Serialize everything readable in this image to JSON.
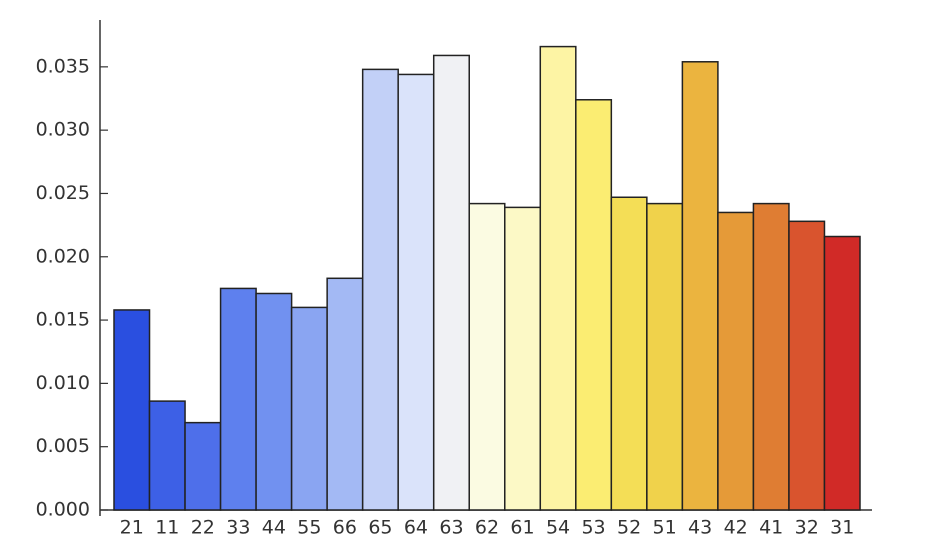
{
  "chart_data": {
    "type": "bar",
    "categories": [
      "21",
      "11",
      "22",
      "33",
      "44",
      "55",
      "66",
      "65",
      "64",
      "63",
      "62",
      "61",
      "54",
      "53",
      "52",
      "51",
      "43",
      "42",
      "41",
      "32",
      "31"
    ],
    "values": [
      0.0158,
      0.0086,
      0.0069,
      0.0175,
      0.0171,
      0.016,
      0.0183,
      0.0348,
      0.0344,
      0.0359,
      0.0242,
      0.0239,
      0.0366,
      0.0324,
      0.0247,
      0.0242,
      0.0354,
      0.0235,
      0.0242,
      0.0228,
      0.0216
    ],
    "colors": [
      "#2a4fe0",
      "#3d60e6",
      "#4e6fea",
      "#5e80ee",
      "#7191f0",
      "#8aa5f2",
      "#a3b9f4",
      "#c2d0f7",
      "#dae3fa",
      "#f0f1f4",
      "#fbfbe2",
      "#fcf9c6",
      "#fdf4a4",
      "#fbed72",
      "#f4de56",
      "#f0d24b",
      "#ebb43f",
      "#e59a38",
      "#df7d33",
      "#d9542e",
      "#d12a27"
    ],
    "ylim": [
      0,
      0.0387
    ],
    "yticks": [
      {
        "value": 0,
        "label": "0.000"
      },
      0.005,
      {
        "value": 0.01,
        "label": "0.010"
      },
      0.015,
      {
        "value": 0.02,
        "label": "0.020"
      },
      0.025,
      {
        "value": 0.03,
        "label": "0.030"
      },
      0.035
    ],
    "grid": false
  }
}
